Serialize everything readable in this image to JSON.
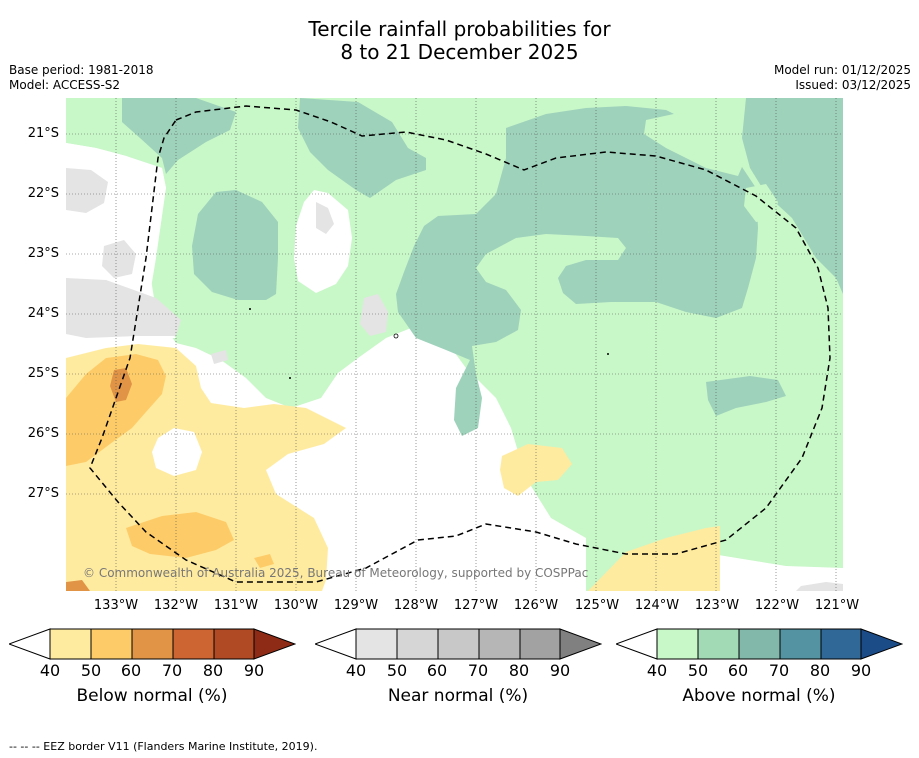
{
  "title": {
    "line1": "Tercile rainfall probabilities for",
    "line2": "8 to 21 December 2025"
  },
  "meta": {
    "base_period": "Base period: 1981-2018",
    "model": "Model: ACCESS-S2",
    "model_run": "Model run: 01/12/2025",
    "issued": "Issued: 03/12/2025"
  },
  "map": {
    "latitudes": [
      "21°S",
      "22°S",
      "23°S",
      "24°S",
      "25°S",
      "26°S",
      "27°S"
    ],
    "longitudes": [
      "133°W",
      "132°W",
      "131°W",
      "130°W",
      "129°W",
      "128°W",
      "127°W",
      "126°W",
      "125°W",
      "124°W",
      "123°W",
      "122°W",
      "121°W"
    ],
    "copyright": "© Commonwealth of Australia 2025, Bureau of Meteorology, supported by COSPPac",
    "colors": {
      "above_50": "#c8f7c8",
      "above_60": "#9ed2bb",
      "below_50": "#ffeba0",
      "below_60": "#fdcc68",
      "below_70": "#e19446",
      "near_50": "#e4e4e4",
      "white": "#ffffff"
    }
  },
  "colorbars": [
    {
      "title": "Below normal (%)",
      "ticks": [
        "40",
        "50",
        "60",
        "70",
        "80",
        "90"
      ],
      "colors": [
        "#ffffff",
        "#ffeba0",
        "#fdcc68",
        "#e19446",
        "#cd6532",
        "#b04a24",
        "#8e2b16"
      ]
    },
    {
      "title": "Near normal (%)",
      "ticks": [
        "40",
        "50",
        "60",
        "70",
        "80",
        "90"
      ],
      "colors": [
        "#ffffff",
        "#e4e4e4",
        "#d6d6d6",
        "#c8c8c8",
        "#b6b6b6",
        "#a2a2a2",
        "#808080"
      ]
    },
    {
      "title": "Above normal (%)",
      "ticks": [
        "40",
        "50",
        "60",
        "70",
        "80",
        "90"
      ],
      "colors": [
        "#ffffff",
        "#c8f7c8",
        "#a2dab6",
        "#82b8aa",
        "#5493a2",
        "#306898",
        "#1c4c88"
      ]
    }
  ],
  "footer": "--  --  -- EEZ border V11 (Flanders Marine Institute, 2019)."
}
